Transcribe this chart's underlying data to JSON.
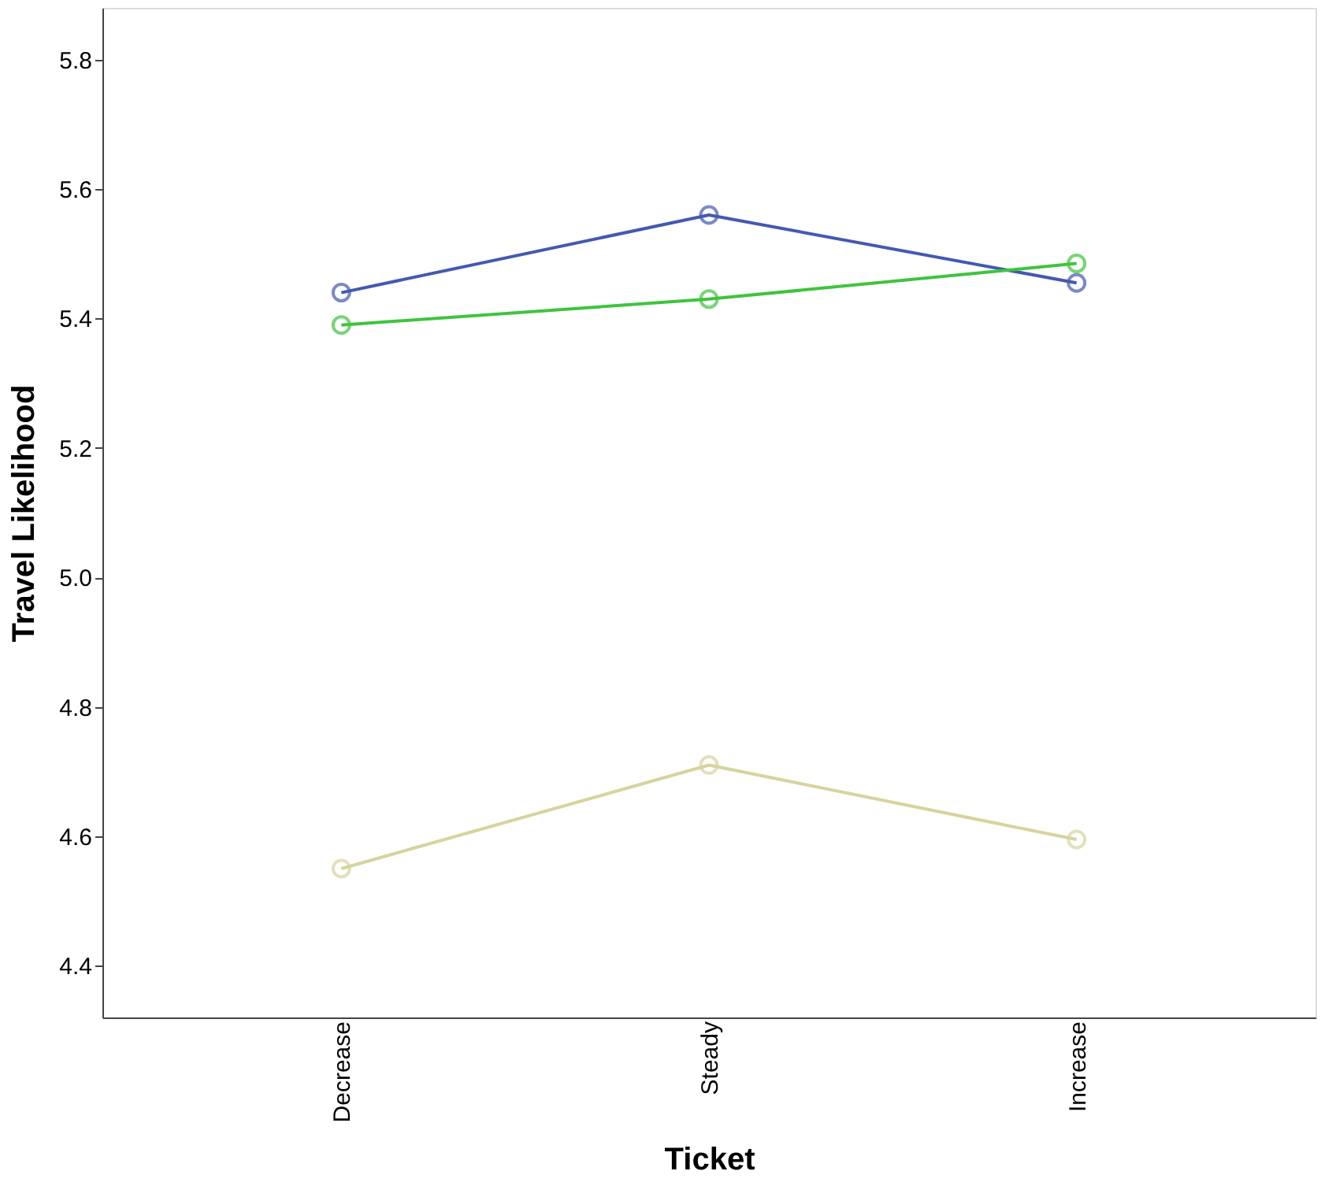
{
  "chart_data": {
    "type": "line",
    "xlabel": "Ticket",
    "ylabel": "Travel Likelihood",
    "categories": [
      "Decrease",
      "Steady",
      "Increase"
    ],
    "series": [
      {
        "color": "#4459b0",
        "values": [
          5.44,
          5.56,
          5.455
        ]
      },
      {
        "color": "#3ec43e",
        "values": [
          5.39,
          5.43,
          5.485
        ]
      },
      {
        "color": "#d6d49e",
        "values": [
          4.55,
          4.71,
          4.595
        ]
      }
    ],
    "ylim": [
      4.32,
      5.88
    ],
    "yticks": [
      4.4,
      4.6,
      4.8,
      {
        "value": 5,
        "label": "5.0"
      },
      5.2,
      5.4,
      5.6,
      5.8
    ],
    "grid": false,
    "marker": "circle",
    "line_style": "solid"
  }
}
